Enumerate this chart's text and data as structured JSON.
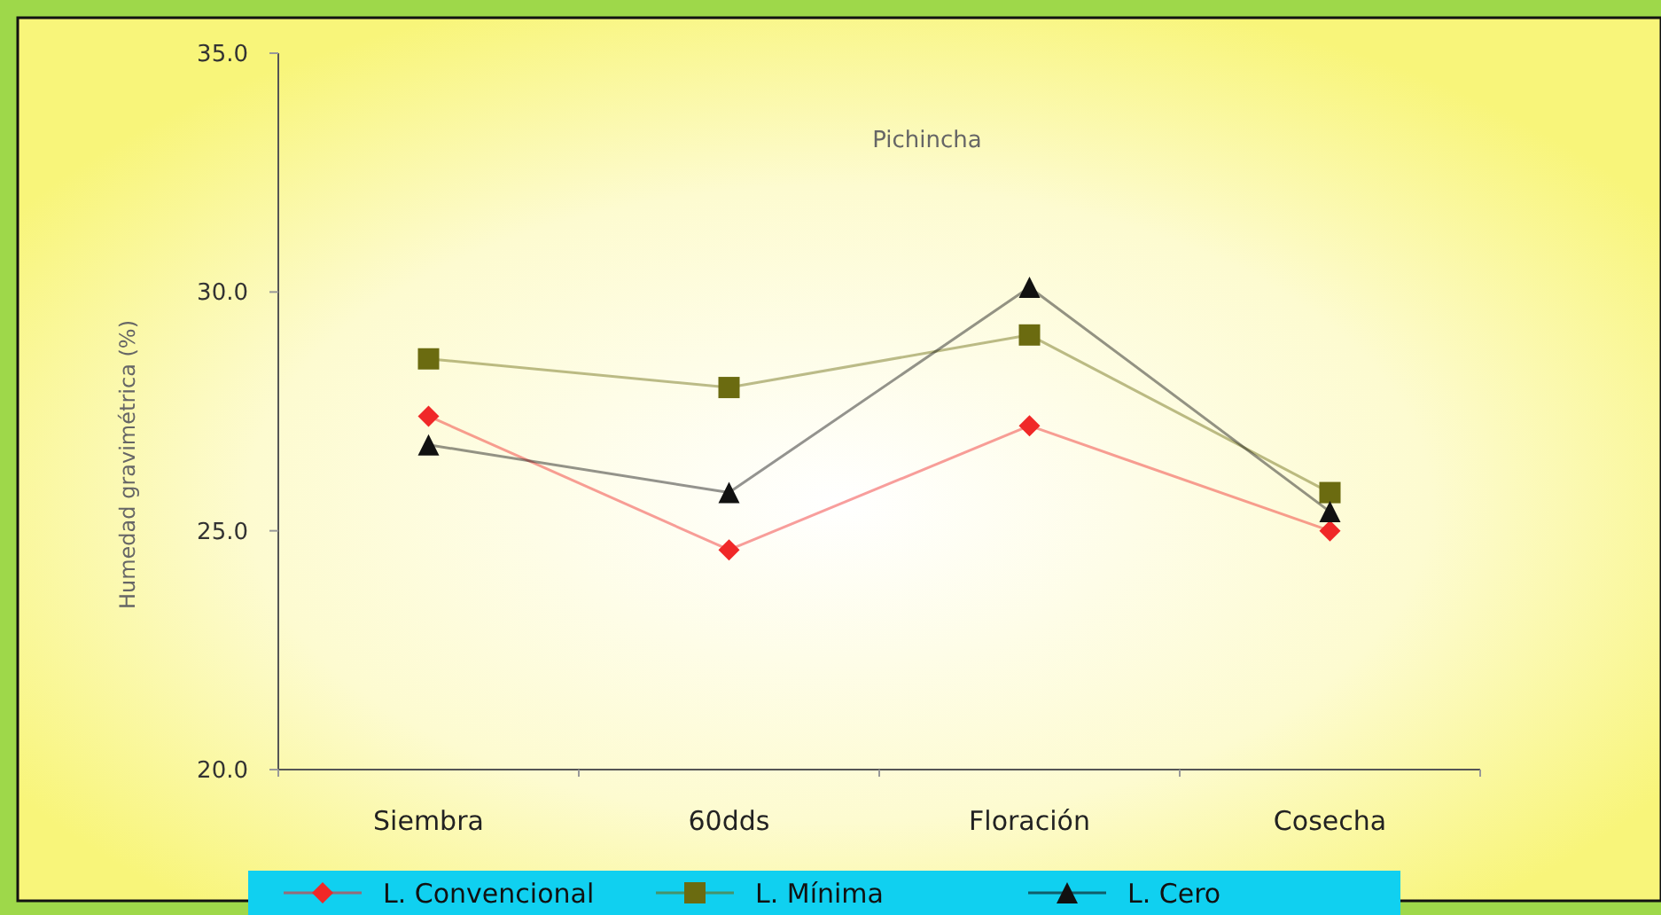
{
  "chart_data": {
    "type": "line",
    "title": "Pichincha",
    "ylabel": "Humedad gravimétrica (%)",
    "categories": [
      "Siembra",
      "60dds",
      "Floración",
      "Cosecha"
    ],
    "ylim": [
      20,
      35
    ],
    "yticks": [
      {
        "value": 20,
        "label": "20.0"
      },
      {
        "value": 25,
        "label": "25.0"
      },
      {
        "value": 30,
        "label": "30.0"
      },
      {
        "value": 35,
        "label": "35.0"
      }
    ],
    "grid": false,
    "legend": "bottom",
    "series": [
      {
        "name": "L. Convencional",
        "color": "#f02828",
        "marker": "diamond",
        "values": [
          27.4,
          24.6,
          27.2,
          25.0
        ]
      },
      {
        "name": "L. Mínima",
        "color": "#6b6b10",
        "marker": "square",
        "values": [
          28.6,
          28.0,
          29.1,
          25.8
        ]
      },
      {
        "name": "L. Cero",
        "color": "#111111",
        "marker": "triangle",
        "values": [
          26.8,
          25.8,
          30.1,
          25.4
        ]
      }
    ]
  }
}
